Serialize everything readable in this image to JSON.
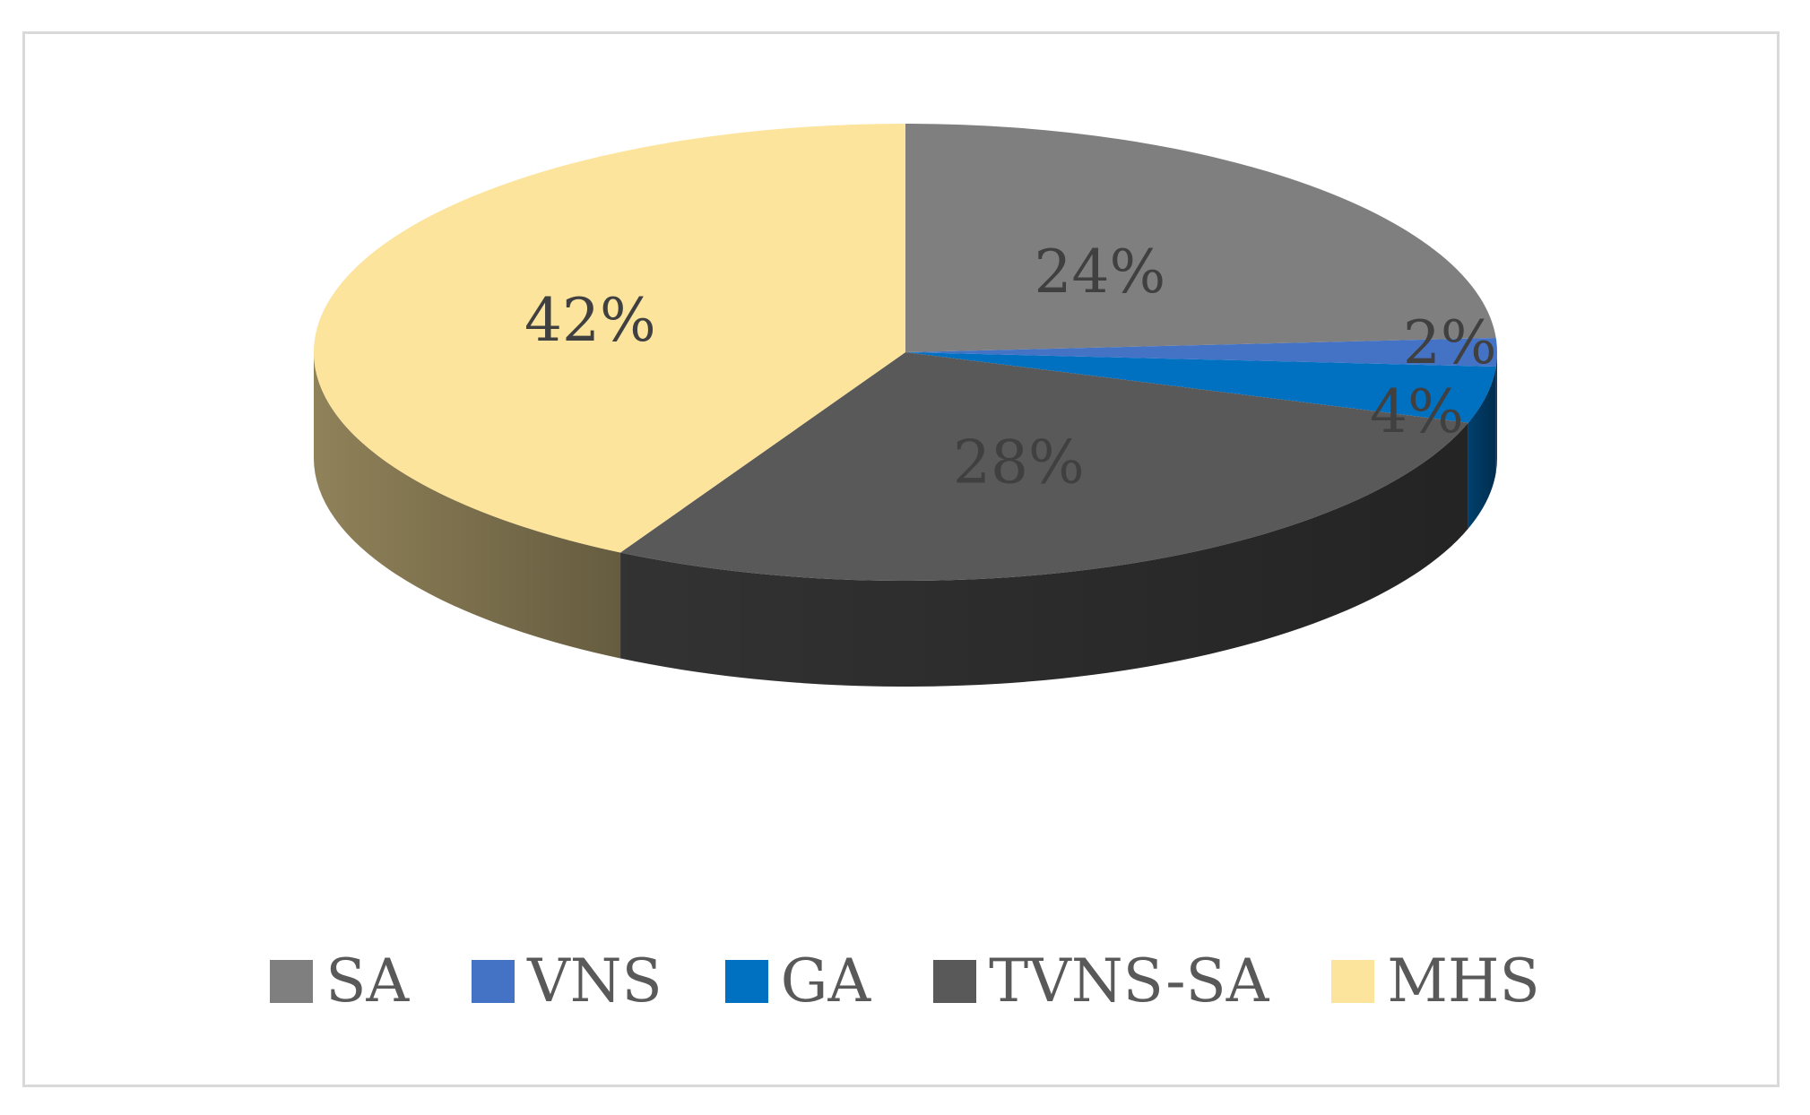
{
  "chart_data": {
    "type": "pie",
    "style": "3d",
    "legend_position": "bottom",
    "categories": [
      "SA",
      "VNS",
      "GA",
      "TVNS-SA",
      "MHS"
    ],
    "values": [
      24,
      2,
      4,
      28,
      42
    ],
    "labels": [
      "24%",
      "2%",
      "4%",
      "28%",
      "42%"
    ],
    "colors": [
      "#7f7f7f",
      "#4472c4",
      "#0070c0",
      "#595959",
      "#fce49c"
    ]
  }
}
